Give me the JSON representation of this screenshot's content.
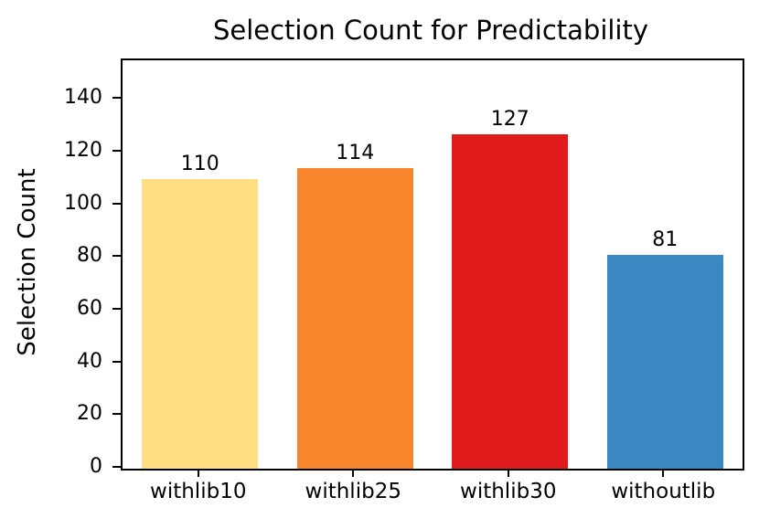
{
  "chart_data": {
    "type": "bar",
    "title": "Selection Count for Predictability",
    "xlabel": "",
    "ylabel": "Selection Count",
    "categories": [
      "withlib10",
      "withlib25",
      "withlib30",
      "withoutlib"
    ],
    "values": [
      110,
      114,
      127,
      81
    ],
    "value_labels": [
      "110",
      "114",
      "127",
      "81"
    ],
    "bar_colors": [
      "#FFDF81",
      "#F8842C",
      "#E01B1C",
      "#3B87C1"
    ],
    "ylim": [
      0,
      155
    ],
    "yticks": [
      0,
      20,
      40,
      60,
      80,
      100,
      120,
      140
    ],
    "grid": false,
    "legend": null,
    "axis_color": "#000000",
    "background_color": "#ffffff"
  }
}
